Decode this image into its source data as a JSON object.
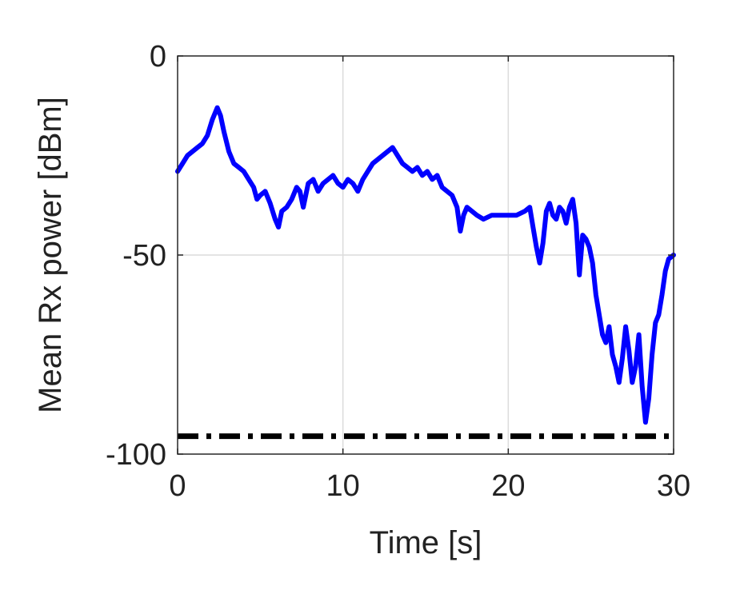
{
  "chart_data": {
    "type": "line",
    "title": "",
    "xlabel": "Time [s]",
    "ylabel": "Mean Rx power [dBm]",
    "xlim": [
      0,
      30
    ],
    "ylim": [
      -100,
      0
    ],
    "xticks": [
      0,
      10,
      20,
      30
    ],
    "yticks": [
      0,
      -50,
      -100
    ],
    "grid": true,
    "legend": "none",
    "series": [
      {
        "color": "#0000ff",
        "style": "solid",
        "x": [
          0,
          0.3,
          0.6,
          0.9,
          1.2,
          1.5,
          1.8,
          2.1,
          2.4,
          2.6,
          2.8,
          3.1,
          3.4,
          3.7,
          4.0,
          4.3,
          4.6,
          4.8,
          5.0,
          5.3,
          5.6,
          5.9,
          6.1,
          6.3,
          6.6,
          6.9,
          7.2,
          7.4,
          7.6,
          7.9,
          8.2,
          8.5,
          8.8,
          9.1,
          9.4,
          9.7,
          10.0,
          10.3,
          10.6,
          10.9,
          11.2,
          11.5,
          11.8,
          12.1,
          12.4,
          12.7,
          13.0,
          13.3,
          13.6,
          13.9,
          14.2,
          14.5,
          14.8,
          15.1,
          15.4,
          15.7,
          16.0,
          16.3,
          16.6,
          16.9,
          17.1,
          17.3,
          17.5,
          17.8,
          18.1,
          18.5,
          19.0,
          19.5,
          20.0,
          20.5,
          21.0,
          21.3,
          21.5,
          21.7,
          21.9,
          22.1,
          22.3,
          22.5,
          22.7,
          22.9,
          23.1,
          23.3,
          23.5,
          23.7,
          23.9,
          24.1,
          24.3,
          24.5,
          24.7,
          24.9,
          25.1,
          25.3,
          25.5,
          25.7,
          25.9,
          26.1,
          26.3,
          26.5,
          26.7,
          26.9,
          27.1,
          27.3,
          27.5,
          27.7,
          27.9,
          28.1,
          28.3,
          28.5,
          28.7,
          28.9,
          29.1,
          29.3,
          29.5,
          29.7,
          30.0
        ],
        "y": [
          -29,
          -27,
          -25,
          -24,
          -23,
          -22,
          -20,
          -16,
          -13,
          -15,
          -19,
          -24,
          -27,
          -28,
          -29,
          -31,
          -33,
          -36,
          -35,
          -34,
          -37,
          -41,
          -43,
          -39,
          -38,
          -36,
          -33,
          -34,
          -38,
          -32,
          -31,
          -34,
          -32,
          -31,
          -30,
          -32,
          -33,
          -31,
          -32,
          -34,
          -31,
          -29,
          -27,
          -26,
          -25,
          -24,
          -23,
          -25,
          -27,
          -28,
          -29,
          -28,
          -30,
          -29,
          -31,
          -30,
          -33,
          -34,
          -35,
          -38,
          -44,
          -40,
          -38,
          -39,
          -40,
          -41,
          -40,
          -40,
          -40,
          -40,
          -39,
          -38,
          -43,
          -48,
          -52,
          -47,
          -39,
          -37,
          -40,
          -41,
          -38,
          -39,
          -42,
          -38,
          -36,
          -42,
          -55,
          -45,
          -46,
          -48,
          -52,
          -60,
          -65,
          -70,
          -72,
          -68,
          -75,
          -78,
          -82,
          -76,
          -68,
          -74,
          -82,
          -78,
          -70,
          -83,
          -92,
          -86,
          -75,
          -67,
          -65,
          -60,
          -54,
          -51,
          -50
        ],
        "width": 6
      },
      {
        "color": "#000000",
        "style": "dashdot",
        "x": [
          0,
          30
        ],
        "y": [
          -95.5,
          -95.5
        ],
        "width": 7
      }
    ]
  }
}
